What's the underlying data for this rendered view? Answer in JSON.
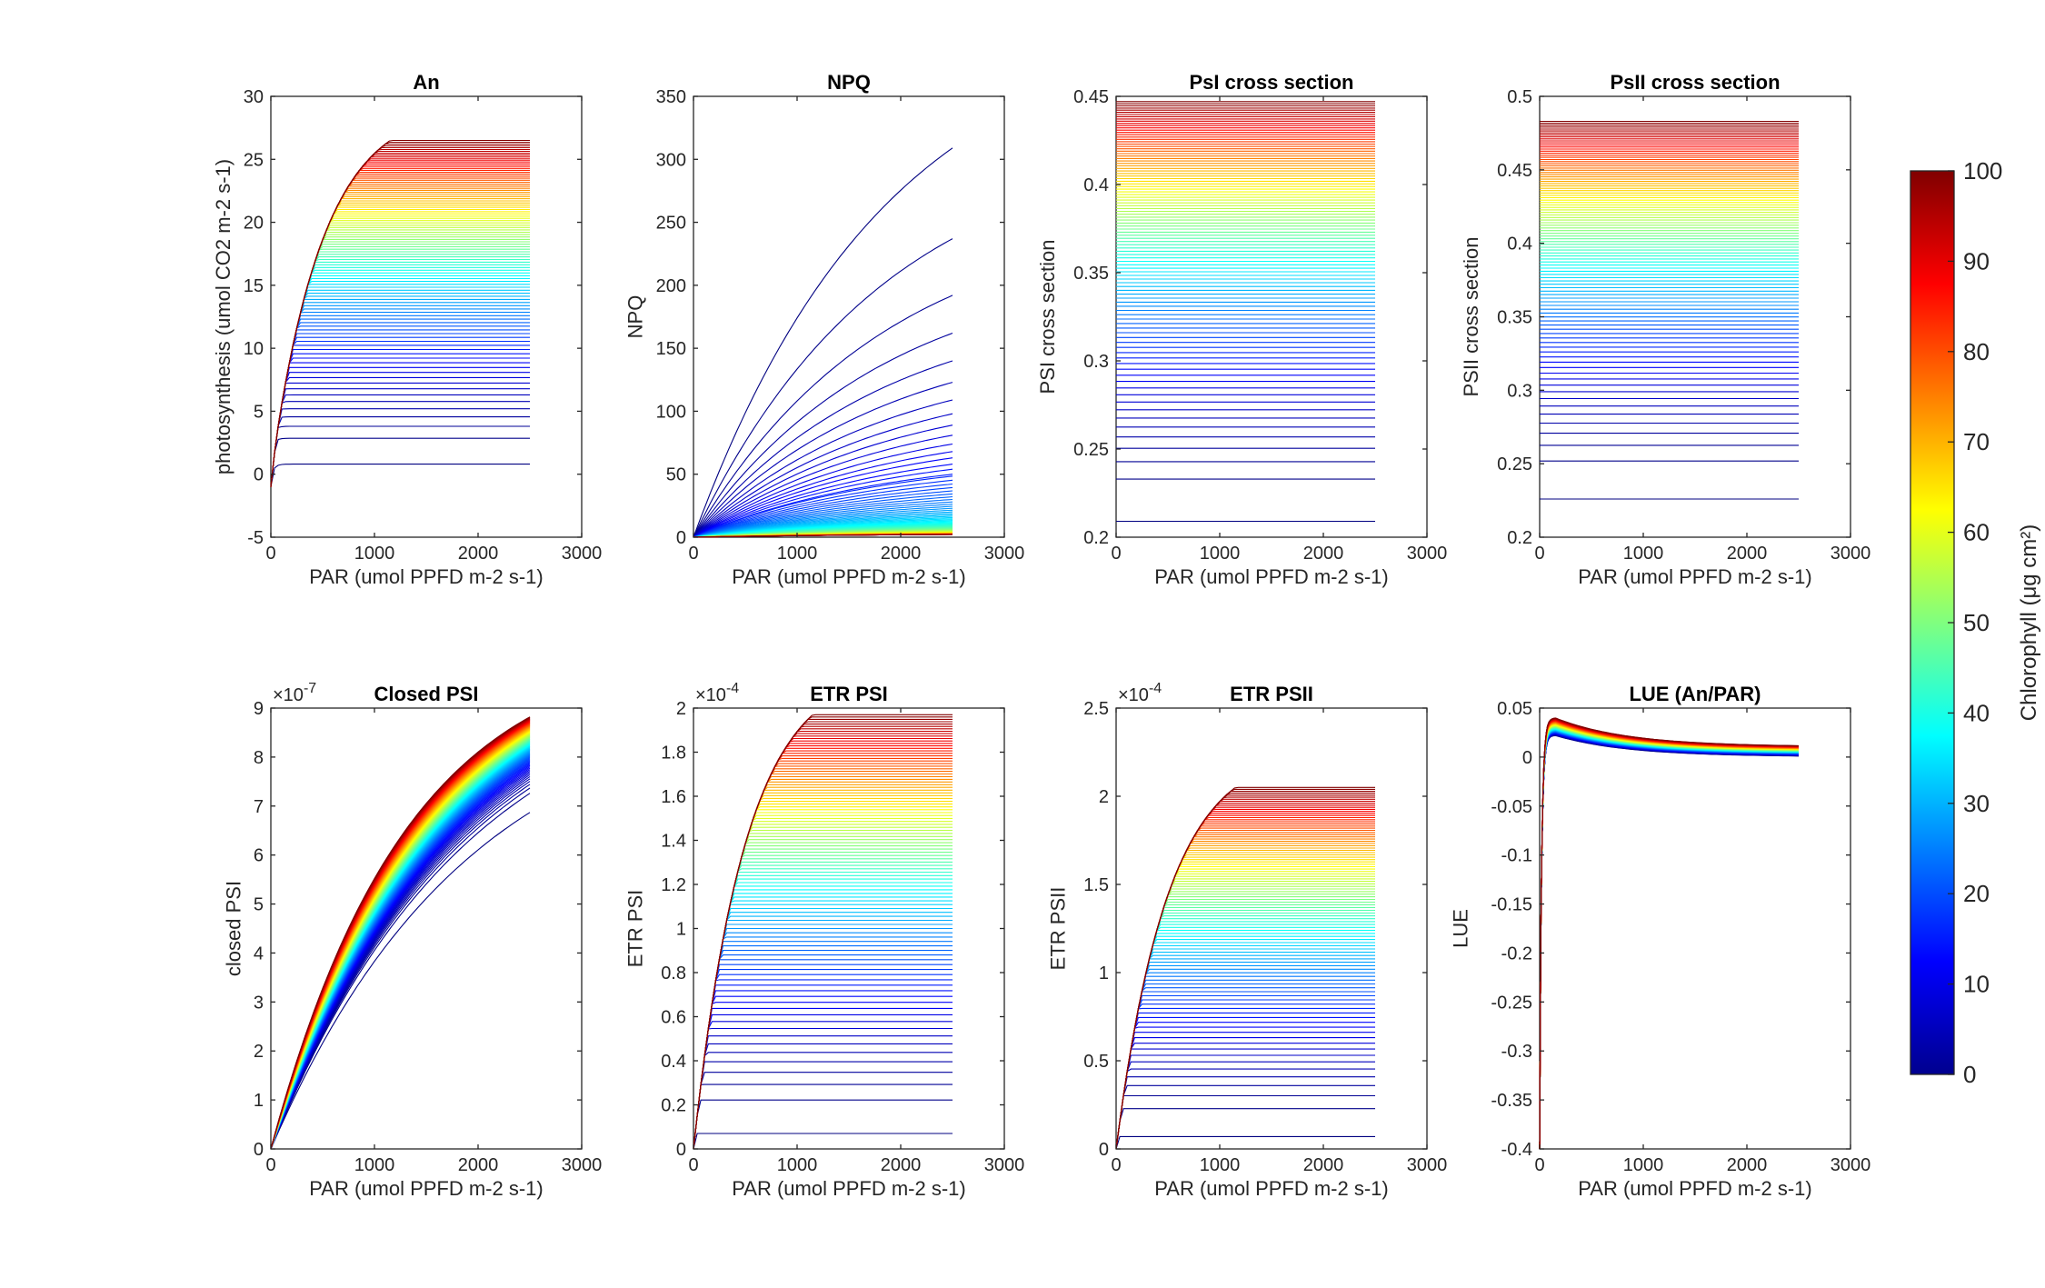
{
  "chart_data": [
    {
      "id": "an",
      "type": "line",
      "title": "An",
      "xlabel": "PAR (umol PPFD m-2 s-1)",
      "ylabel": "photosynthesis (umol CO2 m-2 s-1)",
      "xlim": [
        0,
        3000
      ],
      "ylim": [
        -5,
        30
      ],
      "xticks": [
        0,
        1000,
        2000,
        3000
      ],
      "yticks": [
        -5,
        0,
        5,
        10,
        15,
        20,
        25,
        30
      ],
      "multiplier": "",
      "series_shape": "saturating",
      "par_range": [
        0,
        2500
      ],
      "plateau_range": [
        0.8,
        26.5
      ],
      "n_series": 100,
      "color_by": "chlorophyll"
    },
    {
      "id": "npq",
      "type": "line",
      "title": "NPQ",
      "xlabel": "PAR (umol PPFD m-2 s-1)",
      "ylabel": "NPQ",
      "xlim": [
        0,
        3000
      ],
      "ylim": [
        0,
        350
      ],
      "xticks": [
        0,
        1000,
        2000,
        3000
      ],
      "yticks": [
        0,
        50,
        100,
        150,
        200,
        250,
        300,
        350
      ],
      "multiplier": "",
      "series_shape": "npq",
      "par_range": [
        0,
        2500
      ],
      "end_values_low_chl": [
        309,
        237,
        192,
        162,
        140,
        123,
        109,
        98,
        89,
        81,
        74,
        68,
        63,
        58,
        54,
        50
      ],
      "n_series": 100,
      "color_by": "chlorophyll"
    },
    {
      "id": "psi_cs",
      "type": "line",
      "title": "PsI cross section",
      "xlabel": "PAR (umol PPFD m-2 s-1)",
      "ylabel": "PSI cross section",
      "xlim": [
        0,
        3000
      ],
      "ylim": [
        0.2,
        0.45
      ],
      "xticks": [
        0,
        1000,
        2000,
        3000
      ],
      "yticks": [
        0.2,
        0.25,
        0.3,
        0.35,
        0.4,
        0.45
      ],
      "multiplier": "",
      "series_shape": "flat",
      "par_range": [
        0,
        2500
      ],
      "level_range": [
        0.209,
        0.447
      ],
      "n_series": 100,
      "color_by": "chlorophyll"
    },
    {
      "id": "psii_cs",
      "type": "line",
      "title": "PsII cross section",
      "xlabel": "PAR (umol PPFD m-2 s-1)",
      "ylabel": "PSII cross section",
      "xlim": [
        0,
        3000
      ],
      "ylim": [
        0.2,
        0.5
      ],
      "xticks": [
        0,
        1000,
        2000,
        3000
      ],
      "yticks": [
        0.2,
        0.25,
        0.3,
        0.35,
        0.4,
        0.45,
        0.5
      ],
      "multiplier": "",
      "series_shape": "flat",
      "par_range": [
        0,
        2500
      ],
      "level_range": [
        0.226,
        0.483
      ],
      "n_series": 100,
      "color_by": "chlorophyll"
    },
    {
      "id": "closed_psi",
      "type": "line",
      "title": "Closed PSI",
      "xlabel": "PAR (umol PPFD m-2 s-1)",
      "ylabel": "closed PSI",
      "xlim": [
        0,
        3000
      ],
      "ylim": [
        0,
        9
      ],
      "xticks": [
        0,
        1000,
        2000,
        3000
      ],
      "yticks": [
        0,
        1,
        2,
        3,
        4,
        5,
        6,
        7,
        8,
        9
      ],
      "multiplier": "×10-7",
      "series_shape": "exp_rise",
      "par_range": [
        0,
        2500
      ],
      "end_range": [
        6.87,
        8.82
      ],
      "n_series": 100,
      "color_by": "chlorophyll"
    },
    {
      "id": "etr_psi",
      "type": "line",
      "title": "ETR PSI",
      "xlabel": "PAR (umol PPFD m-2 s-1)",
      "ylabel": "ETR PSI",
      "xlim": [
        0,
        3000
      ],
      "ylim": [
        0,
        2
      ],
      "xticks": [
        0,
        1000,
        2000,
        3000
      ],
      "yticks": [
        0,
        0.2,
        0.4,
        0.6,
        0.8,
        1,
        1.2,
        1.4,
        1.6,
        1.8,
        2
      ],
      "multiplier": "×10-4",
      "series_shape": "saturating",
      "par_range": [
        0,
        2500
      ],
      "plateau_range": [
        0.07,
        1.97
      ],
      "n_series": 100,
      "color_by": "chlorophyll"
    },
    {
      "id": "etr_psii",
      "type": "line",
      "title": "ETR PSII",
      "xlabel": "PAR (umol PPFD m-2 s-1)",
      "ylabel": "ETR PSII",
      "xlim": [
        0,
        3000
      ],
      "ylim": [
        0,
        2.5
      ],
      "xticks": [
        0,
        1000,
        2000,
        3000
      ],
      "yticks": [
        0,
        0.5,
        1,
        1.5,
        2,
        2.5
      ],
      "multiplier": "×10-4",
      "series_shape": "saturating",
      "par_range": [
        0,
        2500
      ],
      "plateau_range": [
        0.07,
        2.05
      ],
      "n_series": 100,
      "color_by": "chlorophyll"
    },
    {
      "id": "lue",
      "type": "line",
      "title": "LUE (An/PAR)",
      "xlabel": "PAR (umol PPFD m-2 s-1)",
      "ylabel": "LUE",
      "xlim": [
        0,
        3000
      ],
      "ylim": [
        -0.4,
        0.05
      ],
      "xticks": [
        0,
        1000,
        2000,
        3000
      ],
      "yticks": [
        -0.4,
        -0.35,
        -0.3,
        -0.25,
        -0.2,
        -0.15,
        -0.1,
        -0.05,
        0,
        0.05
      ],
      "multiplier": "",
      "series_shape": "lue",
      "par_range": [
        0,
        2500
      ],
      "end_range": [
        0.0003,
        0.0106
      ],
      "n_series": 100,
      "color_by": "chlorophyll"
    }
  ],
  "colorbar": {
    "label": "Chlorophyll (μg cm²)",
    "ticks": [
      0,
      10,
      20,
      30,
      40,
      50,
      60,
      70,
      80,
      90,
      100
    ],
    "range": [
      0,
      100
    ],
    "colormap": "jet"
  }
}
